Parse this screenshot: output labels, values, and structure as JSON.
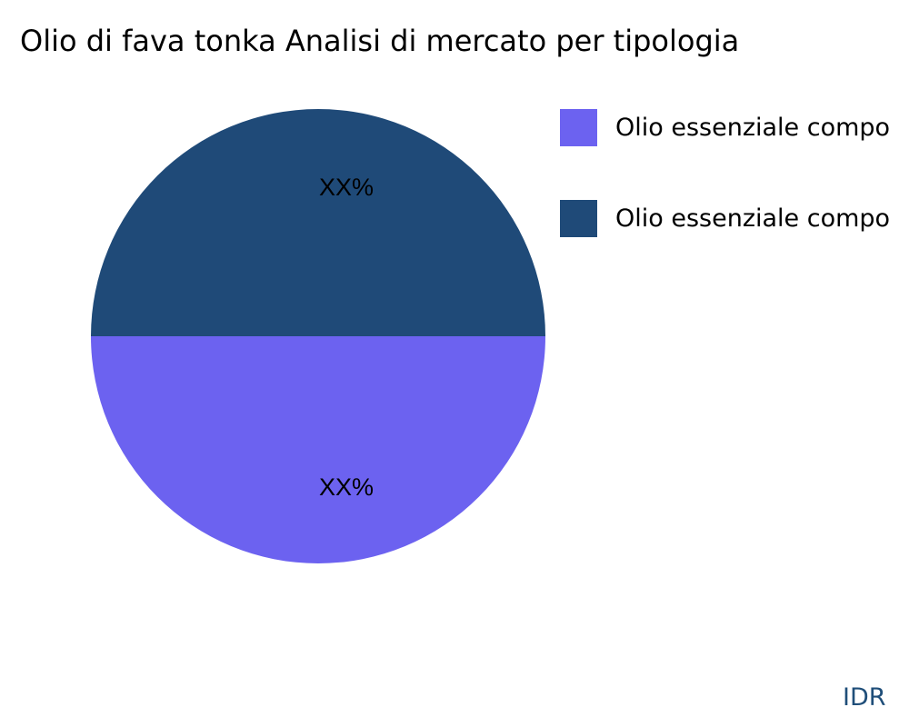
{
  "chart_data": {
    "type": "pie",
    "title": "Olio di fava tonka Analisi di mercato per tipologia",
    "slices": [
      {
        "name": "Olio essenziale compo",
        "value": 50,
        "label": "XX%",
        "color": "#6c62f0"
      },
      {
        "name": "Olio essenziale compo",
        "value": 50,
        "label": "XX%",
        "color": "#1f4a78"
      }
    ],
    "legend_position": "right"
  },
  "watermark": "IDR"
}
